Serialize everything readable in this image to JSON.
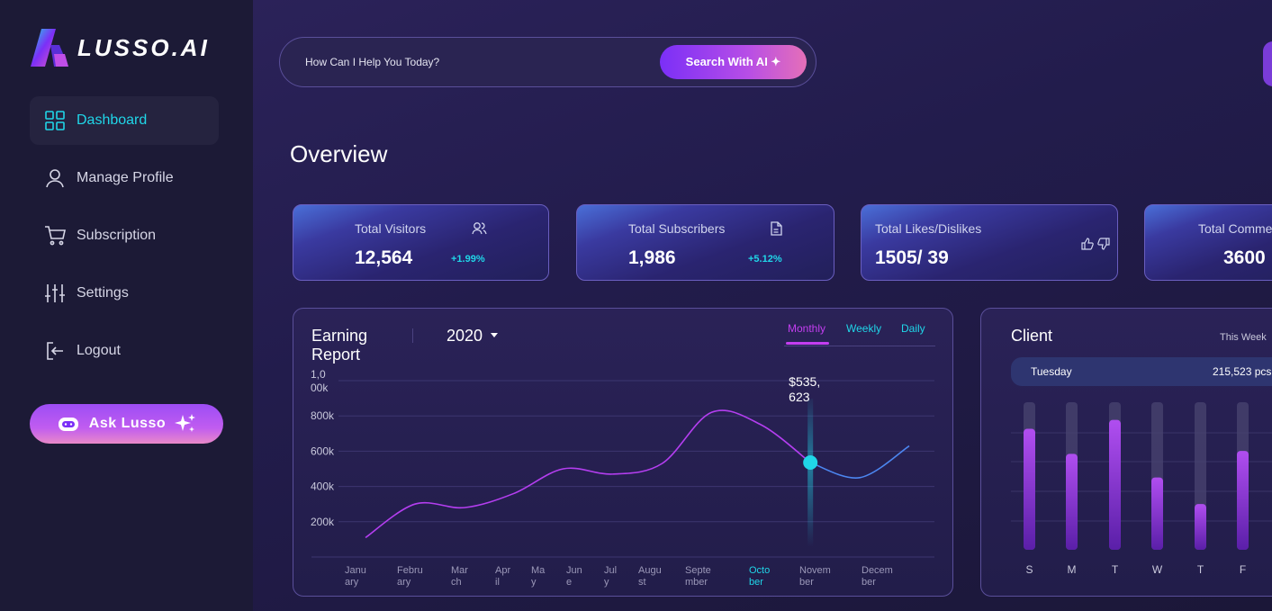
{
  "brand": {
    "name": "LUSSO.AI"
  },
  "sidebar": {
    "items": [
      {
        "label": "Dashboard",
        "icon": "grid-icon",
        "active": true
      },
      {
        "label": "Manage Profile",
        "icon": "user-icon"
      },
      {
        "label": "Subscription",
        "icon": "cart-icon"
      },
      {
        "label": "Settings",
        "icon": "sliders-icon"
      },
      {
        "label": "Logout",
        "icon": "logout-icon"
      }
    ],
    "ask_button": "Ask Lusso"
  },
  "search": {
    "placeholder": "How Can I Help You Today?",
    "button_label": "Search With AI ✦"
  },
  "page_title": "Overview",
  "stats": [
    {
      "label": "Total Visitors",
      "value": "12,564",
      "change": "+1.99%",
      "icon": "users-icon"
    },
    {
      "label": "Total Subscribers",
      "value": "1,986",
      "change": "+5.12%",
      "icon": "document-icon"
    },
    {
      "label": "Total Likes/Dislikes",
      "value": "1505/ 39",
      "icon": "thumbs-icon"
    },
    {
      "label": "Total Comme",
      "value": "3600"
    }
  ],
  "earning_report": {
    "title": "Earning Report",
    "year": "2020",
    "tabs": [
      "Monthly",
      "Weekly",
      "Daily"
    ],
    "active_tab": "Monthly",
    "tooltip": "$535,623",
    "highlight_month": "October",
    "colors": {
      "line_past": "#b43ef0",
      "line_future": "#4c86f0",
      "highlight": "#20d6e8"
    }
  },
  "chart_data": [
    {
      "type": "line",
      "title": "Earning Report",
      "x": [
        "January",
        "February",
        "March",
        "April",
        "May",
        "June",
        "July",
        "August",
        "September",
        "October",
        "November",
        "December"
      ],
      "y_ticks": [
        "1,000k",
        "800k",
        "600k",
        "400k",
        "200k"
      ],
      "ylim": [
        0,
        1000000
      ],
      "series": [
        {
          "values": [
            110000,
            300000,
            280000,
            360000,
            500000,
            470000,
            530000,
            820000,
            750000,
            535623,
            450000,
            630000
          ]
        }
      ],
      "highlight_index": 9,
      "grid": true
    },
    {
      "type": "bar",
      "title": "Client",
      "period": "This Week",
      "categories": [
        "S",
        "M",
        "T",
        "W",
        "T",
        "F"
      ],
      "values": [
        0.82,
        0.65,
        0.88,
        0.49,
        0.31,
        0.67
      ],
      "track_color": "#4a4470",
      "bar_color": "#b04ef0"
    }
  ],
  "client": {
    "title": "Client",
    "period": "This Week",
    "selected_day": "Tuesday",
    "selected_amount": "215,523 pcs"
  }
}
